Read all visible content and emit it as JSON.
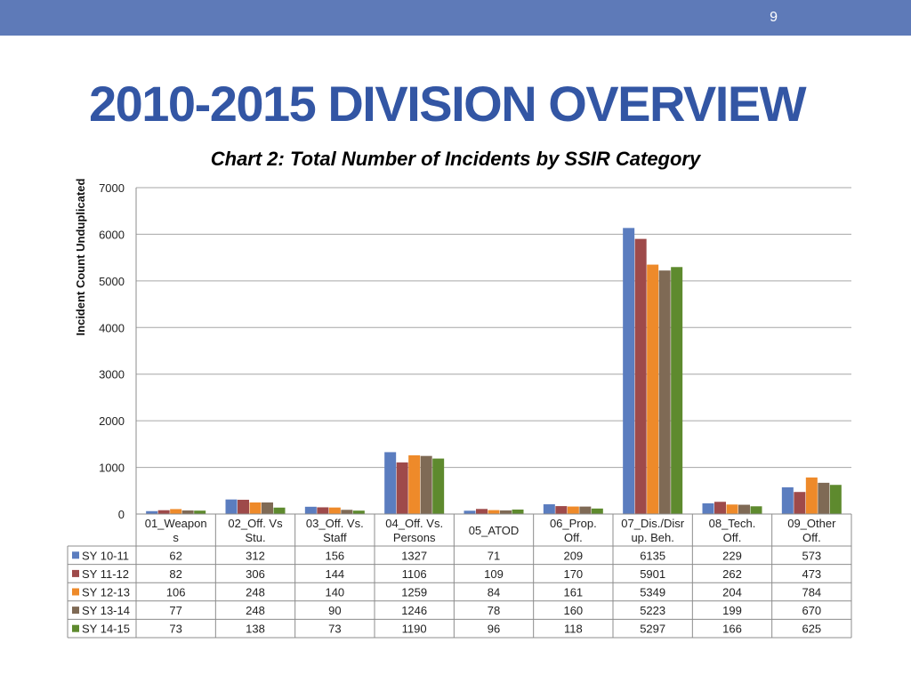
{
  "slide": {
    "page_number": "9",
    "title": "2010-2015 DIVISION OVERVIEW"
  },
  "chart_data": {
    "type": "bar",
    "title": "Chart 2: Total Number of Incidents by SSIR Category",
    "xlabel": "",
    "ylabel": "Incident Count Unduplicated",
    "ylim": [
      0,
      7000
    ],
    "yticks": [
      "0",
      "1000",
      "2000",
      "3000",
      "4000",
      "5000",
      "6000",
      "7000"
    ],
    "grid": true,
    "legend": "data-table-left",
    "categories": [
      [
        "01_Weapon",
        "s"
      ],
      [
        "02_Off. Vs",
        "Stu."
      ],
      [
        "03_Off. Vs.",
        "Staff"
      ],
      [
        "04_Off. Vs.",
        "Persons"
      ],
      [
        "05_ATOD"
      ],
      [
        "06_Prop.",
        "Off."
      ],
      [
        "07_Dis./Disr",
        "up. Beh."
      ],
      [
        "08_Tech.",
        "Off."
      ],
      [
        "09_Other",
        "Off."
      ]
    ],
    "series": [
      {
        "name": "SY 10-11",
        "color": "#5b7dbf",
        "values": [
          62,
          312,
          156,
          1327,
          71,
          209,
          6135,
          229,
          573
        ]
      },
      {
        "name": "SY 11-12",
        "color": "#9e4a4a",
        "values": [
          82,
          306,
          144,
          1106,
          109,
          170,
          5901,
          262,
          473
        ]
      },
      {
        "name": "SY 12-13",
        "color": "#ee8a2a",
        "values": [
          106,
          248,
          140,
          1259,
          84,
          161,
          5349,
          204,
          784
        ]
      },
      {
        "name": "SY 13-14",
        "color": "#7f6a55",
        "values": [
          77,
          248,
          90,
          1246,
          78,
          160,
          5223,
          199,
          670
        ]
      },
      {
        "name": "SY 14-15",
        "color": "#5e8a2e",
        "values": [
          73,
          138,
          73,
          1190,
          96,
          118,
          5297,
          166,
          625
        ]
      }
    ]
  }
}
